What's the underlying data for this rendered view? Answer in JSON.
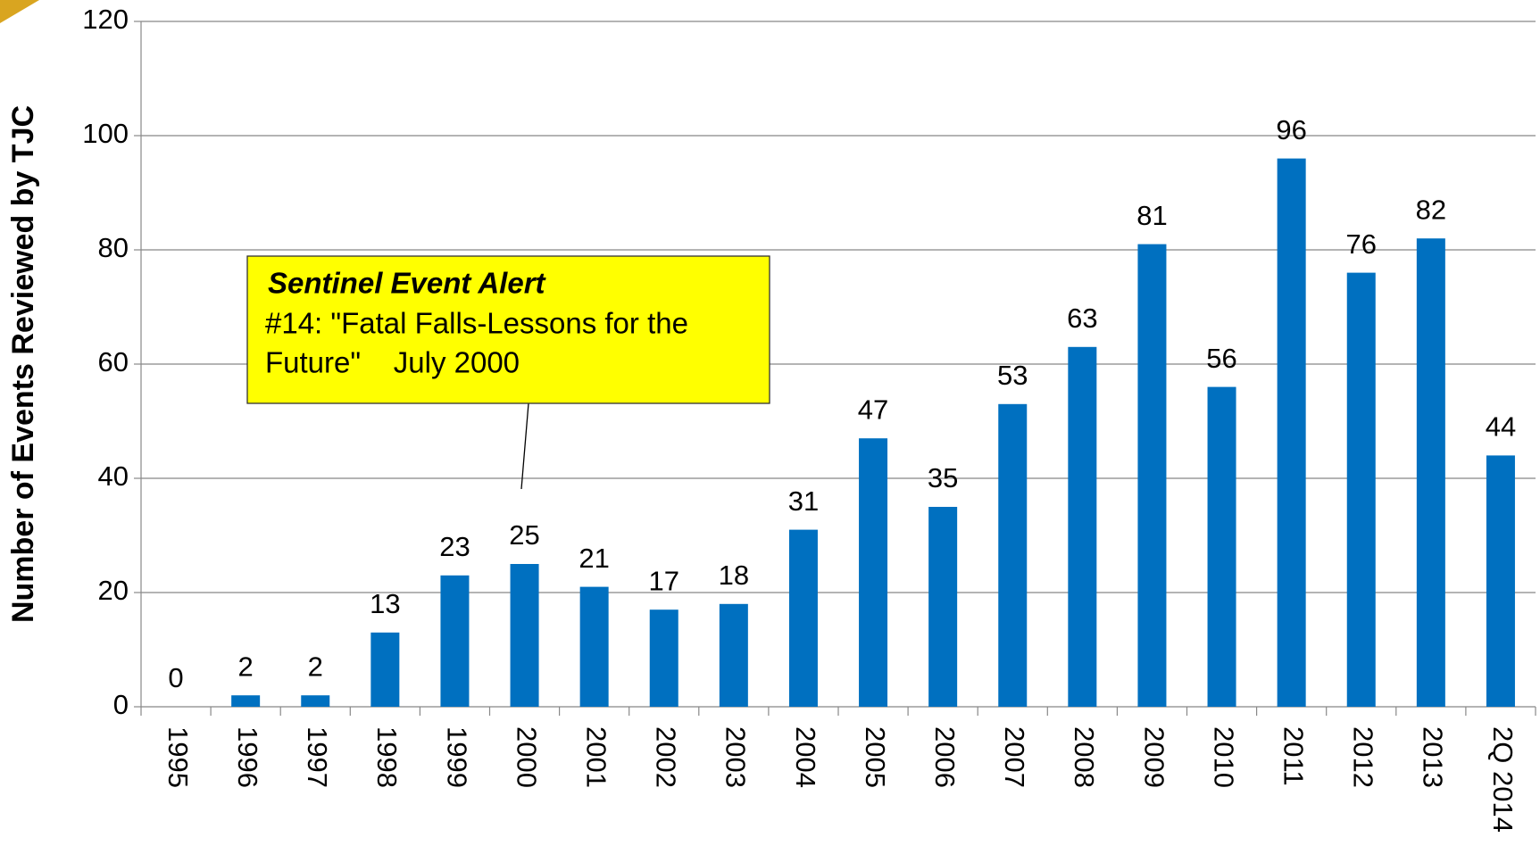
{
  "chart_data": {
    "type": "bar",
    "ylabel": "Number of Events Reviewed by TJC",
    "categories": [
      "1995",
      "1996",
      "1997",
      "1998",
      "1999",
      "2000",
      "2001",
      "2002",
      "2003",
      "2004",
      "2005",
      "2006",
      "2007",
      "2008",
      "2009",
      "2010",
      "2011",
      "2012",
      "2013",
      "2Q 2014"
    ],
    "values": [
      0,
      2,
      2,
      13,
      23,
      25,
      21,
      17,
      18,
      31,
      47,
      35,
      53,
      63,
      81,
      56,
      96,
      76,
      82,
      44
    ],
    "color": "#0070c0",
    "ylim": [
      0,
      120
    ],
    "yticks": [
      0,
      20,
      40,
      60,
      80,
      100,
      120
    ],
    "grid": true,
    "annotation": {
      "title": "Sentinel Event Alert",
      "lines": [
        "#14: \"Fatal Falls-Lessons for the",
        "Future\"    July 2000"
      ]
    }
  }
}
